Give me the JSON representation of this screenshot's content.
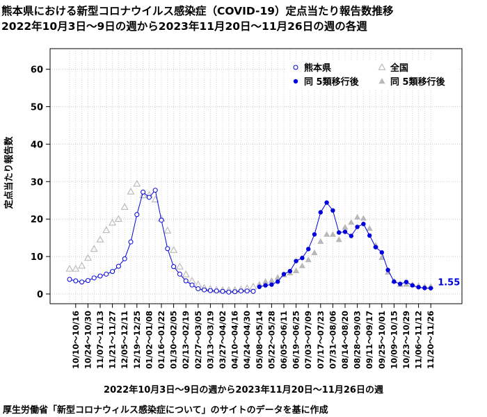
{
  "header": {
    "title": "熊本県における新型コロナウイルス感染症（COVID-19）定点当たり報告数推移",
    "subtitle": "2022年10月3日～9日の週から2023年11月20日～11月26日の週の各週"
  },
  "footer": {
    "xlabel": "2022年10月3日～9日の週から2023年11月20日～11月26日の週",
    "source": "厚生労働省「新型コロナウィルス感染症について」のサイトのデータを基に作成"
  },
  "chart_data": {
    "type": "line",
    "title": "熊本県における新型コロナウイルス感染症（COVID-19）定点当たり報告数推移",
    "xlabel": "2022年10月3日～9日の週から2023年11月20日～11月26日の週",
    "ylabel": "定点当たり報告数",
    "ylim": [
      0,
      65
    ],
    "yticks": [
      0,
      10,
      20,
      30,
      40,
      50,
      60
    ],
    "grid": true,
    "legend_position": "top-right",
    "colors": {
      "kumamoto": "#0000dd",
      "national": "#b8b8b8"
    },
    "x_tick_labels": [
      "10/10～10/16",
      "10/24～10/30",
      "11/07～11/13",
      "11/21～11/27",
      "12/05～12/11",
      "12/19～12/25",
      "01/02～01/08",
      "01/16～01/22",
      "01/30～02/05",
      "02/13～02/19",
      "02/27～03/05",
      "03/13～03/19",
      "03/27～04/02",
      "04/10～04/16",
      "04/24～04/30",
      "05/08～05/14",
      "05/22～05/28",
      "06/05～06/11",
      "06/19～06/25",
      "07/03～07/09",
      "07/17～07/23",
      "07/31～08/06",
      "08/14～08/20",
      "08/28～09/03",
      "09/11～09/17",
      "09/25～10/01",
      "10/09～10/15",
      "10/23～10/29",
      "11/06～11/12",
      "11/20～11/26"
    ],
    "tick_every": 2,
    "tick_offset": 1,
    "split_index": 31,
    "series": [
      {
        "name": "熊本県",
        "marker": "open-circle",
        "values": [
          3.9,
          3.5,
          3.2,
          3.6,
          4.3,
          4.8,
          5.3,
          6.0,
          7.4,
          9.4,
          13.9,
          21.2,
          27.2,
          25.8,
          27.7,
          19.7,
          12.1,
          7.3,
          5.3,
          3.5,
          2.4,
          1.4,
          1.1,
          0.9,
          0.8,
          0.7,
          0.5,
          0.6,
          0.8,
          0.8,
          0.7
        ]
      },
      {
        "name": "同 5類移行後",
        "marker": "filled-circle",
        "values": [
          1.9,
          2.3,
          2.5,
          3.3,
          5.3,
          6.1,
          8.8,
          9.6,
          12.0,
          15.9,
          21.8,
          24.4,
          22.3,
          16.4,
          16.6,
          15.5,
          17.9,
          18.7,
          15.6,
          12.5,
          11.1,
          6.4,
          3.3,
          2.7,
          3.2,
          2.3,
          1.8,
          1.6,
          1.55
        ]
      },
      {
        "name": "全国",
        "marker": "open-triangle",
        "values": [
          6.7,
          6.7,
          7.5,
          9.6,
          12.0,
          14.5,
          17.0,
          19.0,
          20.0,
          23.2,
          27.3,
          29.4,
          26.3,
          26.4,
          25.2,
          20.1,
          16.9,
          11.7,
          7.3,
          5.2,
          3.5,
          2.5,
          1.6,
          1.3,
          1.1,
          1.0,
          1.0,
          1.0,
          1.2,
          1.5,
          1.9
        ]
      },
      {
        "name": "同 5類移行後",
        "marker": "filled-triangle",
        "values": [
          2.6,
          3.3,
          3.6,
          4.4,
          5.1,
          5.6,
          6.2,
          7.5,
          9.1,
          11.0,
          14.0,
          15.9,
          15.9,
          14.5,
          17.8,
          19.1,
          20.5,
          20.2,
          17.5,
          13.0,
          9.7,
          5.8,
          3.5,
          2.5,
          2.6,
          2.5,
          2.2,
          2.0,
          2.0
        ]
      }
    ],
    "end_label": "1.55"
  }
}
